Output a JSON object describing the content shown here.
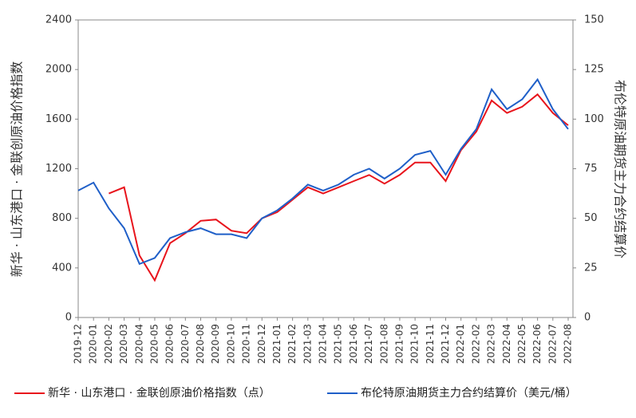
{
  "chart_data": {
    "type": "line",
    "y_label": "新华 · 山东港口 · 金联创原油价格指数",
    "y2_label": "布伦特原油期货主力合约结算价",
    "x": [
      "2019-12",
      "2020-01",
      "2020-02",
      "2020-03",
      "2020-04",
      "2020-05",
      "2020-06",
      "2020-07",
      "2020-08",
      "2020-09",
      "2020-10",
      "2020-11",
      "2020-12",
      "2021-01",
      "2021-02",
      "2021-03",
      "2021-04",
      "2021-05",
      "2021-06",
      "2021-07",
      "2021-08",
      "2021-09",
      "2021-10",
      "2021-11",
      "2021-12",
      "2022-01",
      "2022-02",
      "2022-03",
      "2022-04",
      "2022-05",
      "2022-06",
      "2022-07",
      "2022-08"
    ],
    "series": [
      {
        "name": "新华 · 山东港口 · 金联创原油价格指数（点）",
        "color": "#e8141c",
        "axis": "y",
        "values": [
          null,
          null,
          1000,
          1050,
          500,
          300,
          600,
          680,
          780,
          790,
          700,
          680,
          800,
          850,
          950,
          1050,
          1000,
          1050,
          1100,
          1150,
          1080,
          1150,
          1250,
          1250,
          1100,
          1350,
          1500,
          1750,
          1650,
          1700,
          1800,
          1650,
          1550
        ]
      },
      {
        "name": "布伦特原油期货主力合约结算价（美元/桶）",
        "color": "#1f5fc8",
        "axis": "y2",
        "values": [
          64,
          68,
          55,
          45,
          27,
          30,
          40,
          43,
          45,
          42,
          42,
          40,
          50,
          54,
          60,
          67,
          64,
          67,
          72,
          75,
          70,
          75,
          82,
          84,
          72,
          85,
          95,
          115,
          105,
          110,
          120,
          105,
          95
        ]
      }
    ],
    "ylim": [
      0,
      2400
    ],
    "yticks": [
      0,
      400,
      800,
      1200,
      1600,
      2000,
      2400
    ],
    "y2lim": [
      0,
      150
    ],
    "y2ticks": [
      0,
      25,
      50,
      75,
      100,
      125,
      150
    ]
  }
}
